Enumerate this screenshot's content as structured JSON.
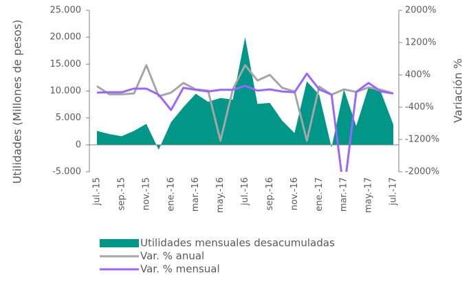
{
  "chart_data": {
    "type": "area_line",
    "y_label": "Utilidades (Millones de pesos)",
    "y2_label": "Variación %",
    "categories": [
      "jul.-15",
      null,
      "sep.-15",
      null,
      "nov.-15",
      null,
      "ene.-16",
      null,
      "mar.-16",
      null,
      "may.-16",
      null,
      "jul.-16",
      null,
      "sep.-16",
      null,
      "nov.-16",
      null,
      "ene.-17",
      null,
      "mar.-17",
      null,
      "may.-17",
      null,
      "jul.-17"
    ],
    "ylim": [
      -5000,
      25000
    ],
    "yticks": [
      {
        "value": 25000,
        "label": "25.000"
      },
      {
        "value": 20000,
        "label": "20.000"
      },
      {
        "value": 15000,
        "label": "15.000"
      },
      {
        "value": 10000,
        "label": "10.000"
      },
      {
        "value": 5000,
        "label": "5.000"
      },
      0,
      {
        "value": -5000,
        "label": "-5.000"
      }
    ],
    "y2lim": [
      -2000,
      2000
    ],
    "y2ticks": [
      {
        "value": 2000,
        "label": "2000%"
      },
      {
        "value": 1200,
        "label": "1200%"
      },
      {
        "value": 400,
        "label": "400%"
      },
      {
        "value": -400,
        "label": "-400%"
      },
      {
        "value": -1200,
        "label": "-1200%"
      },
      {
        "value": -2000,
        "label": "-2000%"
      }
    ],
    "series": [
      {
        "name": "Utilidades mensuales desacumuladas",
        "color": "#009688",
        "kind": "area",
        "values": [
          2600,
          2000,
          1600,
          2600,
          3900,
          -900,
          4200,
          7000,
          9500,
          8000,
          8700,
          8400,
          20000,
          7600,
          7800,
          4500,
          2200,
          11800,
          9300,
          -500,
          10300,
          3500,
          10800,
          9800,
          3800
        ]
      },
      {
        "name": "Var. % anual",
        "color": "#a6a6a6",
        "kind": "line",
        "axis": "y2",
        "values": [
          120,
          -80,
          -80,
          -60,
          640,
          -130,
          -40,
          200,
          40,
          10,
          -1230,
          40,
          640,
          260,
          400,
          80,
          -10,
          -1230,
          110,
          -90,
          40,
          -20,
          90,
          30,
          -60
        ]
      },
      {
        "name": "Var. % mensual",
        "color": "#9966ff",
        "kind": "line",
        "axis": "y2",
        "values": [
          -40,
          -30,
          -30,
          60,
          60,
          -90,
          -470,
          80,
          30,
          -10,
          30,
          30,
          130,
          10,
          40,
          -10,
          -30,
          430,
          40,
          -90,
          -2500,
          -20,
          200,
          -10,
          -60
        ]
      }
    ]
  }
}
